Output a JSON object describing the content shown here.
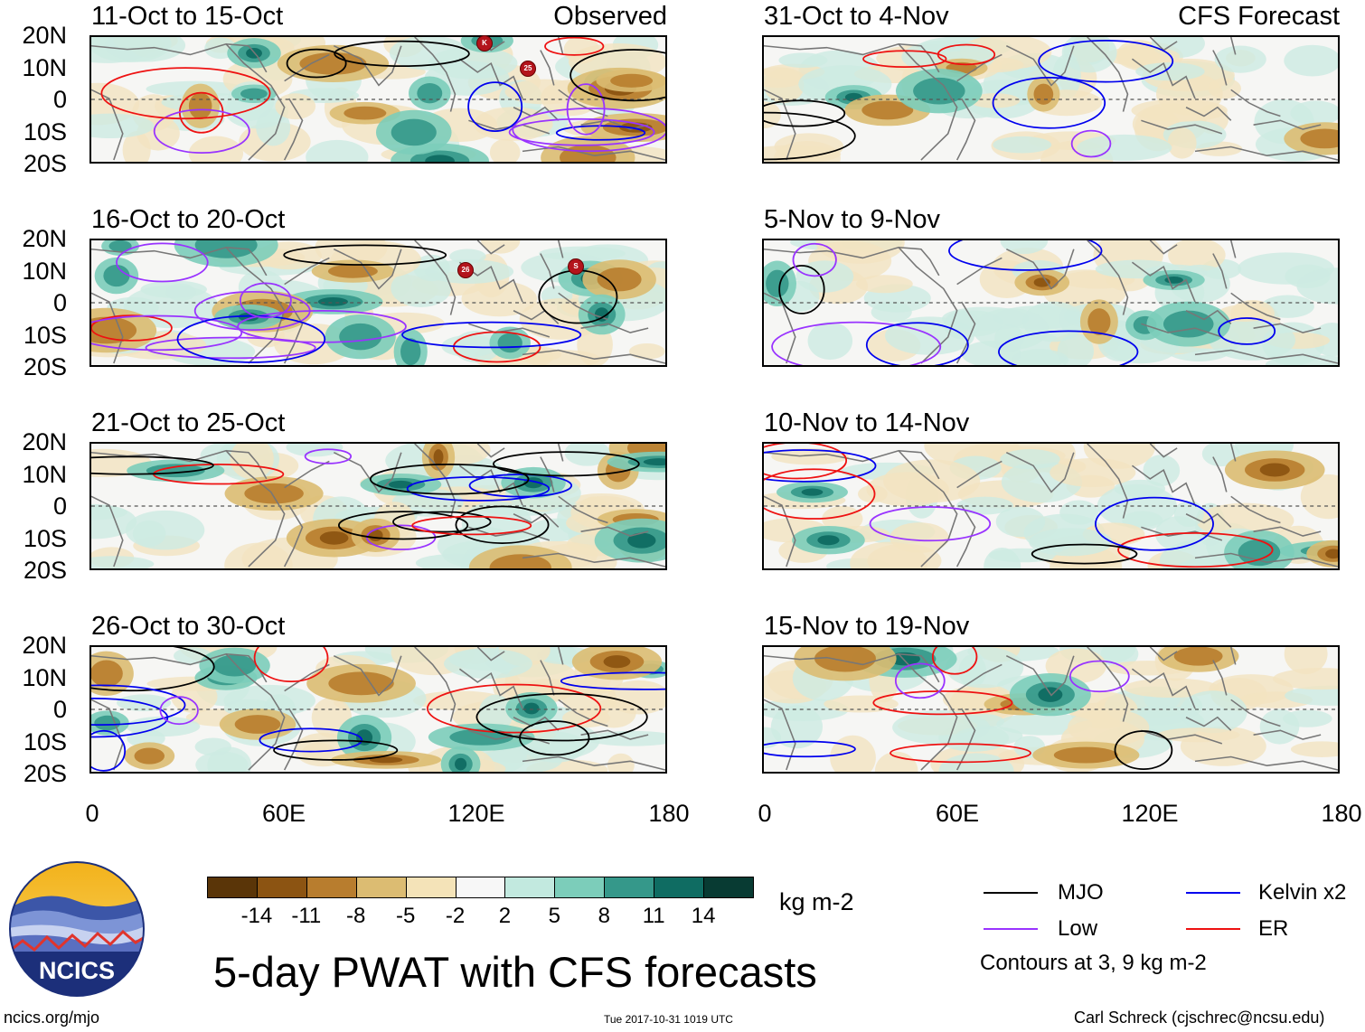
{
  "panels": [
    {
      "title": "11-Oct to 15-Oct",
      "tag": "Observed"
    },
    {
      "title": "16-Oct to 20-Oct",
      "tag": ""
    },
    {
      "title": "21-Oct to 25-Oct",
      "tag": ""
    },
    {
      "title": "26-Oct to 30-Oct",
      "tag": ""
    },
    {
      "title": "31-Oct to 4-Nov",
      "tag": "CFS Forecast"
    },
    {
      "title": "5-Nov to 9-Nov",
      "tag": ""
    },
    {
      "title": "10-Nov to 14-Nov",
      "tag": ""
    },
    {
      "title": "15-Nov to 19-Nov",
      "tag": ""
    }
  ],
  "axes": {
    "y_ticks": [
      "20N",
      "10N",
      "0",
      "10S",
      "20S"
    ],
    "x_ticks": [
      "0",
      "60E",
      "120E",
      "180"
    ]
  },
  "colorbar": {
    "unit": "kg m-2",
    "labels": [
      "-14",
      "-11",
      "-8",
      "-5",
      "-2",
      "2",
      "5",
      "8",
      "11",
      "14"
    ],
    "colors": [
      "#5a3508",
      "#8c5412",
      "#b87d2e",
      "#dcbc72",
      "#f4e3b8",
      "#f7f7f7",
      "#c2e9df",
      "#7ccdba",
      "#35988a",
      "#0f6c62",
      "#083b33"
    ]
  },
  "legend": {
    "items": [
      {
        "label": "MJO",
        "color": "#000000"
      },
      {
        "label": "Kelvin x2",
        "color": "#0000ee"
      },
      {
        "label": "Low",
        "color": "#9933ff"
      },
      {
        "label": "ER",
        "color": "#ee1111"
      }
    ],
    "note": "Contours at 3, 9 kg m-2"
  },
  "main_title": "5-day PWAT with CFS forecasts",
  "footer": {
    "url": "ncics.org/mjo",
    "timestamp": "Tue 2017-10-31 1019 UTC",
    "author": "Carl Schreck (cjschrec@ncsu.edu)"
  },
  "logo": {
    "text": "NCICS"
  },
  "storm_markers": [
    {
      "panel": 0,
      "label": "K"
    },
    {
      "panel": 0,
      "label": "25"
    },
    {
      "panel": 1,
      "label": "26"
    },
    {
      "panel": 1,
      "label": "S"
    }
  ]
}
